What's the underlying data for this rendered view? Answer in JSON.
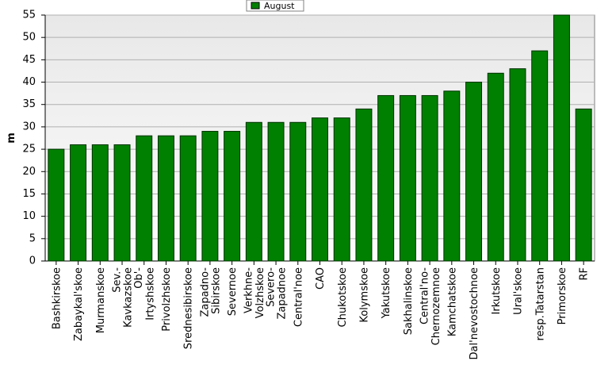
{
  "chart_data": {
    "type": "bar",
    "categories": [
      "Bashkirskoe",
      "Zabaykal'skoe",
      "Murmanskoe",
      "Sev.-Kavkazskoe",
      "Ob'-Irtyshskoe",
      "Privolzhskoe",
      "Srednesibirskoe",
      "Zapadno-Sibirskoe",
      "Severnoe",
      "Verkhne-Volzhskoe",
      "Severo-Zapadnoe",
      "Central'noe",
      "CAO",
      "Chukotskoe",
      "Kolymskoe",
      "Yakutskoe",
      "Sakhalinskoe",
      "Central'no-Chernozemnoe",
      "Kamchatskoe",
      "Dal'nevostochnoe",
      "Irkutskoe",
      "Ural'skoe",
      "resp.Tatarstan",
      "Primorskoe",
      "RF"
    ],
    "series": [
      {
        "name": "August",
        "color": "#008000",
        "values": [
          25,
          26,
          26,
          26,
          28,
          28,
          28,
          29,
          29,
          31,
          31,
          31,
          32,
          32,
          34,
          37,
          37,
          37,
          38,
          40,
          42,
          43,
          47,
          55,
          34
        ]
      }
    ],
    "y_label": "m",
    "ylim": [
      0,
      55
    ],
    "yticks": [
      0,
      5,
      10,
      15,
      20,
      25,
      30,
      35,
      40,
      45,
      50,
      55
    ],
    "grid": true,
    "legend": "top"
  }
}
